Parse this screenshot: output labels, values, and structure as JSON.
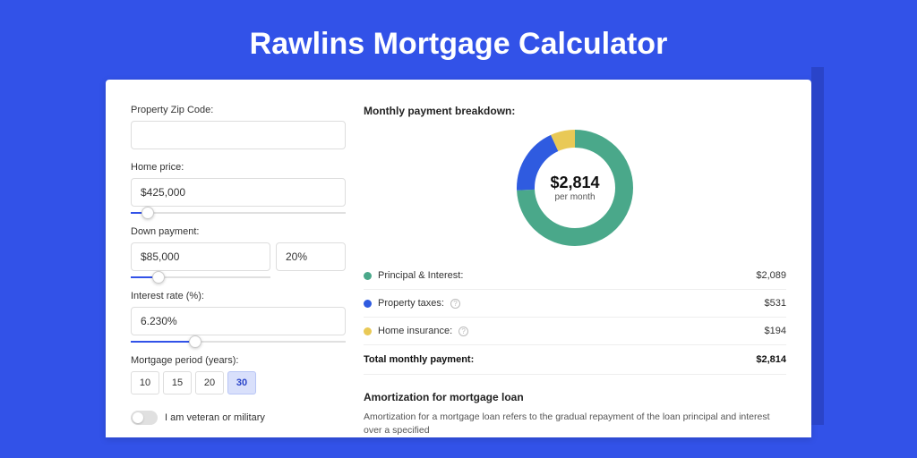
{
  "page": {
    "title": "Rawlins Mortgage Calculator"
  },
  "colors": {
    "bg": "#3252e8",
    "principal": "#4aa88a",
    "taxes": "#2f5be0",
    "insurance": "#e9c956"
  },
  "form": {
    "zip": {
      "label": "Property Zip Code:",
      "value": ""
    },
    "home_price": {
      "label": "Home price:",
      "value": "$425,000",
      "slider_pct": 8
    },
    "down_payment": {
      "label": "Down payment:",
      "value": "$85,000",
      "pct": "20%",
      "slider_pct": 20
    },
    "rate": {
      "label": "Interest rate (%):",
      "value": "6.230%",
      "slider_pct": 30
    },
    "period": {
      "label": "Mortgage period (years):",
      "options": [
        "10",
        "15",
        "20",
        "30"
      ],
      "selected": "30"
    },
    "veteran": {
      "label": "I am veteran or military",
      "checked": false
    }
  },
  "breakdown": {
    "title": "Monthly payment breakdown:",
    "donut": {
      "center_value": "$2,814",
      "center_sub": "per month",
      "slices": [
        {
          "key": "principal",
          "color": "#4aa88a",
          "value": 2089
        },
        {
          "key": "taxes",
          "color": "#2f5be0",
          "value": 531
        },
        {
          "key": "insurance",
          "color": "#e9c956",
          "value": 194
        }
      ],
      "total": 2814,
      "stroke_width": 20,
      "radius": 55
    },
    "legend": [
      {
        "dot": "#4aa88a",
        "label": "Principal & Interest:",
        "info": false,
        "value": "$2,089"
      },
      {
        "dot": "#2f5be0",
        "label": "Property taxes:",
        "info": true,
        "value": "$531"
      },
      {
        "dot": "#e9c956",
        "label": "Home insurance:",
        "info": true,
        "value": "$194"
      }
    ],
    "total": {
      "label": "Total monthly payment:",
      "value": "$2,814"
    }
  },
  "amortization": {
    "title": "Amortization for mortgage loan",
    "text": "Amortization for a mortgage loan refers to the gradual repayment of the loan principal and interest over a specified"
  }
}
